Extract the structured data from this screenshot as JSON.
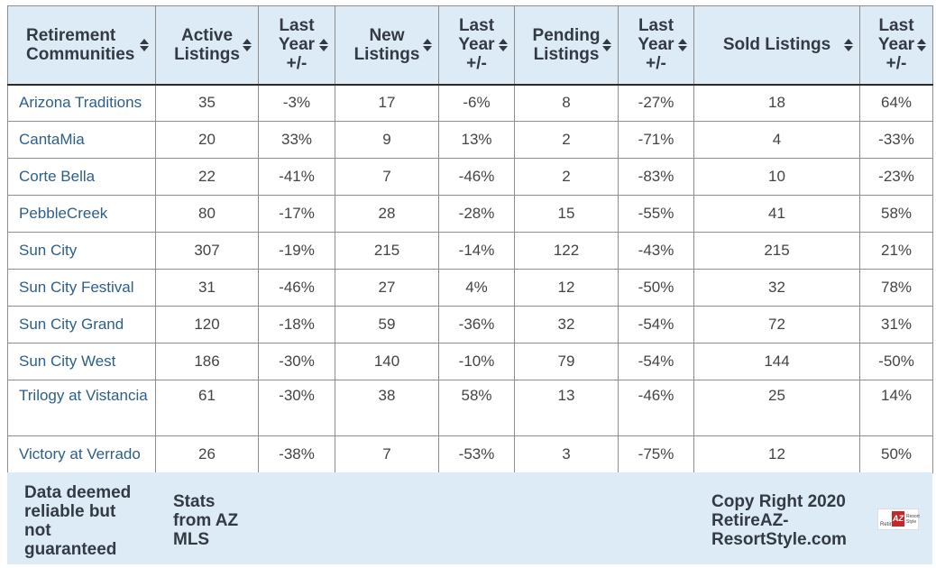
{
  "table": {
    "headers": [
      {
        "label": "Retirement Communities"
      },
      {
        "label": "Active Listings"
      },
      {
        "label": "Last Year +/-"
      },
      {
        "label": "New Listings"
      },
      {
        "label": "Last Year +/-"
      },
      {
        "label": "Pending Listings"
      },
      {
        "label": "Last Year +/-"
      },
      {
        "label": "Sold Listings"
      },
      {
        "label": "Last Year +/-"
      }
    ],
    "rows": [
      [
        "Arizona Traditions",
        "35",
        "-3%",
        "17",
        "-6%",
        "8",
        "-27%",
        "18",
        "64%"
      ],
      [
        "CantaMia",
        "20",
        "33%",
        "9",
        "13%",
        "2",
        "-71%",
        "4",
        "-33%"
      ],
      [
        "Corte Bella",
        "22",
        "-41%",
        "7",
        "-46%",
        "2",
        "-83%",
        "10",
        "-23%"
      ],
      [
        "PebbleCreek",
        "80",
        "-17%",
        "28",
        "-28%",
        "15",
        "-55%",
        "41",
        "58%"
      ],
      [
        "Sun City",
        "307",
        "-19%",
        "215",
        "-14%",
        "122",
        "-43%",
        "215",
        "21%"
      ],
      [
        "Sun City Festival",
        "31",
        "-46%",
        "27",
        "4%",
        "12",
        "-50%",
        "32",
        "78%"
      ],
      [
        "Sun City Grand",
        "120",
        "-18%",
        "59",
        "-36%",
        "32",
        "-54%",
        "72",
        "31%"
      ],
      [
        "Sun City West",
        "186",
        "-30%",
        "140",
        "-10%",
        "79",
        "-54%",
        "144",
        "-50%"
      ],
      [
        "Trilogy at Vistancia",
        "61",
        "-30%",
        "38",
        "58%",
        "13",
        "-46%",
        "25",
        "14%"
      ],
      [
        "Victory at Verrado",
        "26",
        "-38%",
        "7",
        "-53%",
        "3",
        "-75%",
        "12",
        "50%"
      ]
    ]
  },
  "footer": {
    "disclaimer": "Data deemed reliable but not guaranteed",
    "source": "Stats from AZ MLS",
    "copyright": "Copy Right 2020 RetireAZ-ResortStyle.com",
    "logo_text": "Retire AZ Resort Style"
  },
  "colors": {
    "header_bg": "#dcebf6",
    "link": "#2c5f8a",
    "logo_accent": "#c62828"
  }
}
